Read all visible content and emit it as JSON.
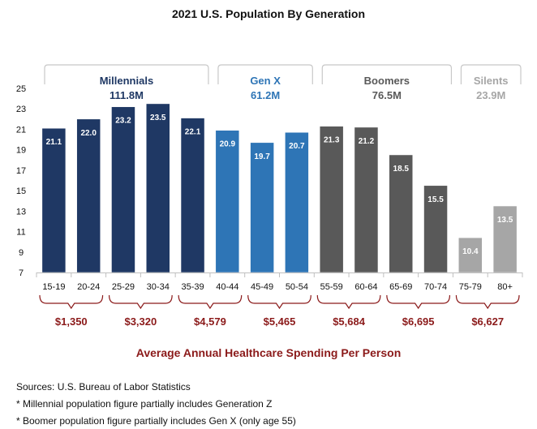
{
  "chart_data": {
    "type": "bar",
    "title": "2021 U.S. Population By Generation",
    "ylim": [
      7,
      25
    ],
    "yticks": [
      7,
      9,
      11,
      13,
      15,
      17,
      19,
      21,
      23,
      25
    ],
    "categories": [
      "15-19",
      "20-24",
      "25-29",
      "30-34",
      "35-39",
      "40-44",
      "45-49",
      "50-54",
      "55-59",
      "60-64",
      "65-69",
      "70-74",
      "75-79",
      "80+"
    ],
    "values": [
      21.1,
      22.0,
      23.2,
      23.5,
      22.1,
      20.9,
      19.7,
      20.7,
      21.3,
      21.2,
      18.5,
      15.5,
      10.4,
      13.5
    ],
    "value_labels": [
      "21.1",
      "22.0",
      "23.2",
      "23.5",
      "22.1",
      "20.9",
      "19.7",
      "20.7",
      "21.3",
      "21.2",
      "18.5",
      "15.5",
      "10.4",
      "13.5"
    ],
    "generations": [
      {
        "name": "Millennials",
        "population": "111.8M",
        "color": "#1f3864",
        "text_color": "#1f3864",
        "start": 0,
        "end": 4
      },
      {
        "name": "Gen X",
        "population": "61.2M",
        "color": "#2e75b6",
        "text_color": "#2e75b6",
        "start": 5,
        "end": 7
      },
      {
        "name": "Boomers",
        "population": "76.5M",
        "color": "#595959",
        "text_color": "#595959",
        "start": 8,
        "end": 11
      },
      {
        "name": "Silents",
        "population": "23.9M",
        "color": "#a6a6a6",
        "text_color": "#a6a6a6",
        "start": 12,
        "end": 13
      }
    ],
    "spending": [
      {
        "label": "$1,350",
        "start": 0,
        "end": 1
      },
      {
        "label": "$3,320",
        "start": 2,
        "end": 3
      },
      {
        "label": "$4,579",
        "start": 4,
        "end": 5
      },
      {
        "label": "$5,465",
        "start": 6,
        "end": 7
      },
      {
        "label": "$5,684",
        "start": 8,
        "end": 9
      },
      {
        "label": "$6,695",
        "start": 10,
        "end": 11
      },
      {
        "label": "$6,627",
        "start": 12,
        "end": 13
      }
    ],
    "spending_title": "Average Annual Healthcare Spending Per Person",
    "spending_color": "#8b1a1a"
  },
  "notes": [
    "Sources: U.S. Bureau of Labor Statistics",
    "* Millennial population figure partially includes Generation Z",
    "* Boomer population figure partially includes Gen X (only age 55)"
  ]
}
